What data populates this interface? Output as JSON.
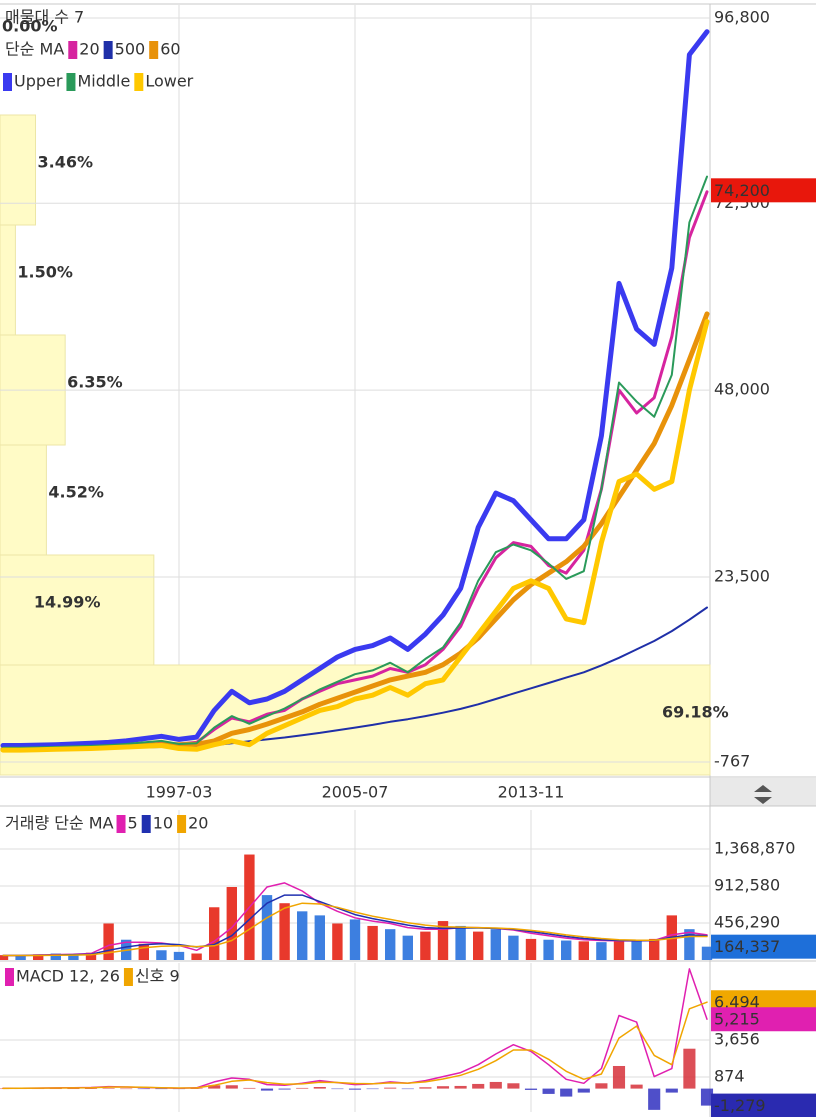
{
  "chart_data": [
    {
      "type": "line",
      "title": "매물대 수 7",
      "ma_label": "단순 MA",
      "categories": [
        null,
        null,
        null,
        null,
        null,
        null,
        null,
        null,
        null,
        null,
        "1997-03",
        null,
        null,
        null,
        null,
        null,
        null,
        null,
        null,
        null,
        "2005-07",
        null,
        null,
        null,
        null,
        null,
        null,
        null,
        null,
        null,
        "2013-11",
        null,
        null,
        null,
        null,
        null,
        null,
        null,
        null,
        null,
        null
      ],
      "series": [
        {
          "name": "20",
          "color": "#d6249f",
          "width": 3,
          "values": [
            1000,
            1000,
            1050,
            1100,
            1150,
            1200,
            1300,
            1400,
            1500,
            1700,
            1600,
            1800,
            3500,
            5000,
            4500,
            5500,
            6000,
            7500,
            8500,
            9500,
            10000,
            10500,
            11500,
            11000,
            12000,
            14000,
            17000,
            22000,
            26000,
            28000,
            27500,
            25000,
            24000,
            27000,
            35000,
            48000,
            45000,
            47000,
            55000,
            68000,
            74000
          ]
        },
        {
          "name": "500",
          "color": "#1f2fa8",
          "width": 2,
          "values": [
            900,
            900,
            920,
            950,
            980,
            1000,
            1050,
            1100,
            1150,
            1200,
            1250,
            1300,
            1450,
            1700,
            1950,
            2200,
            2450,
            2750,
            3050,
            3400,
            3750,
            4100,
            4500,
            4850,
            5250,
            5700,
            6200,
            6800,
            7500,
            8200,
            8900,
            9600,
            10300,
            11000,
            11900,
            12900,
            14000,
            15100,
            16400,
            17900,
            19500
          ]
        },
        {
          "name": "60",
          "color": "#e8920a",
          "width": 5,
          "values": [
            900,
            950,
            1000,
            1050,
            1100,
            1150,
            1200,
            1300,
            1400,
            1500,
            1500,
            1550,
            2000,
            3000,
            3500,
            4200,
            5000,
            5800,
            6800,
            7600,
            8400,
            9200,
            10000,
            10500,
            11000,
            12000,
            13500,
            15500,
            18000,
            20500,
            22500,
            24000,
            25500,
            27500,
            30500,
            34000,
            37500,
            41000,
            46000,
            52000,
            58000
          ]
        },
        {
          "name": "Upper",
          "color": "#3a3af0",
          "width": 5,
          "values": [
            1400,
            1400,
            1450,
            1500,
            1600,
            1700,
            1800,
            2000,
            2300,
            2600,
            2200,
            2500,
            6000,
            8500,
            7000,
            7500,
            8500,
            10000,
            11500,
            13000,
            14000,
            14500,
            15500,
            14000,
            16000,
            18500,
            22000,
            30000,
            34500,
            33500,
            31000,
            28500,
            28500,
            31000,
            42000,
            62000,
            56000,
            54000,
            64000,
            92000,
            95000
          ]
        },
        {
          "name": "Middle",
          "color": "#2a9a5a",
          "width": 2,
          "values": [
            1100,
            1100,
            1150,
            1200,
            1275,
            1350,
            1450,
            1600,
            1800,
            2000,
            1600,
            1700,
            3750,
            5250,
            4250,
            5250,
            6250,
            7500,
            8750,
            9750,
            10750,
            11250,
            12250,
            11000,
            12750,
            14250,
            17500,
            23000,
            26750,
            27750,
            27000,
            25250,
            23250,
            24250,
            35000,
            49000,
            46500,
            44500,
            50000,
            70000,
            76000
          ]
        },
        {
          "name": "Lower",
          "color": "#ffc800",
          "width": 5,
          "values": [
            800,
            800,
            850,
            900,
            950,
            1000,
            1100,
            1200,
            1300,
            1400,
            1000,
            900,
            1500,
            2000,
            1500,
            3000,
            4000,
            5000,
            6000,
            6500,
            7500,
            8000,
            9000,
            8000,
            9500,
            10000,
            13000,
            16000,
            19000,
            22000,
            23000,
            22000,
            18000,
            17500,
            28000,
            36000,
            37000,
            35000,
            36000,
            48000,
            57000
          ]
        }
      ],
      "volume_profile": {
        "values": [
          0.0,
          3.46,
          1.5,
          6.35,
          4.52,
          14.99,
          69.18
        ],
        "value_labels": [
          "0.00%",
          "3.46%",
          "1.50%",
          "6.35%",
          "4.52%",
          "14.99%",
          "69.18%"
        ]
      },
      "ylim": [
        -2470,
        98500
      ],
      "yticks": [
        -767,
        {
          "value": 23500,
          "label": "23,500"
        },
        {
          "value": 48000,
          "label": "48,000"
        },
        {
          "value": 72500,
          "label": "72,500"
        },
        {
          "value": 96800,
          "label": "96,800"
        }
      ],
      "last": [
        {
          "value": 74200,
          "label": "74,200",
          "color": "#e8170c"
        }
      ],
      "grid": true
    },
    {
      "type": "bar",
      "title": "거래량 단순 MA",
      "values": [
        60000,
        50000,
        70000,
        80000,
        60000,
        90000,
        450000,
        250000,
        200000,
        120000,
        100000,
        80000,
        650000,
        900000,
        1300000,
        800000,
        700000,
        600000,
        550000,
        450000,
        500000,
        420000,
        380000,
        300000,
        350000,
        480000,
        420000,
        350000,
        380000,
        300000,
        260000,
        250000,
        240000,
        230000,
        220000,
        240000,
        230000,
        260000,
        550000,
        380000,
        164337
      ],
      "colors": [
        "#e8392c",
        "#3d7fe0",
        "#e8392c",
        "#3d7fe0",
        "#3d7fe0",
        "#e8392c",
        "#e8392c",
        "#3d7fe0",
        "#e8392c",
        "#3d7fe0",
        "#3d7fe0",
        "#e8392c",
        "#e8392c",
        "#e8392c",
        "#e8392c",
        "#3d7fe0",
        "#e8392c",
        "#3d7fe0",
        "#3d7fe0",
        "#e8392c",
        "#3d7fe0",
        "#e8392c",
        "#3d7fe0",
        "#3d7fe0",
        "#e8392c",
        "#e8392c",
        "#3d7fe0",
        "#e8392c",
        "#3d7fe0",
        "#3d7fe0",
        "#e8392c",
        "#3d7fe0",
        "#3d7fe0",
        "#e8392c",
        "#3d7fe0",
        "#e8392c",
        "#3d7fe0",
        "#e8392c",
        "#e8392c",
        "#3d7fe0",
        "#3d7fe0"
      ],
      "series": [
        {
          "name": "5",
          "color": "#e020b0",
          "width": 1.5,
          "values": [
            55000,
            55000,
            62000,
            66000,
            70000,
            80000,
            180000,
            220000,
            220000,
            210000,
            180000,
            120000,
            230000,
            400000,
            650000,
            900000,
            950000,
            850000,
            700000,
            600000,
            520000,
            480000,
            450000,
            400000,
            380000,
            380000,
            400000,
            400000,
            390000,
            370000,
            330000,
            300000,
            270000,
            250000,
            240000,
            235000,
            235000,
            240000,
            310000,
            340000,
            310000
          ]
        },
        {
          "name": "10",
          "color": "#2030b0",
          "width": 1.5,
          "values": [
            55000,
            55000,
            58000,
            62000,
            66000,
            72000,
            120000,
            160000,
            190000,
            200000,
            190000,
            160000,
            190000,
            300000,
            500000,
            700000,
            800000,
            800000,
            720000,
            640000,
            560000,
            510000,
            470000,
            430000,
            400000,
            390000,
            395000,
            395000,
            390000,
            380000,
            350000,
            320000,
            290000,
            265000,
            250000,
            240000,
            238000,
            240000,
            280000,
            310000,
            300000
          ]
        },
        {
          "name": "20",
          "color": "#f0a500",
          "width": 1.5,
          "values": [
            55000,
            55000,
            56000,
            58000,
            61000,
            65000,
            90000,
            120000,
            150000,
            170000,
            175000,
            165000,
            175000,
            240000,
            380000,
            520000,
            640000,
            700000,
            690000,
            650000,
            590000,
            540000,
            500000,
            460000,
            430000,
            410000,
            405000,
            400000,
            395000,
            385000,
            365000,
            340000,
            310000,
            285000,
            265000,
            250000,
            244000,
            243000,
            265000,
            290000,
            290000
          ]
        }
      ],
      "ylim": [
        0,
        1849000
      ],
      "yticks": [
        {
          "value": 456290,
          "label": "456,290"
        },
        {
          "value": 912580,
          "label": "912,580"
        },
        {
          "value": 1368870,
          "label": "1,368,870"
        }
      ],
      "last": [
        {
          "value": 164337,
          "label": "164,337",
          "color": "#1e6fd9"
        }
      ],
      "grid": true
    },
    {
      "type": "line",
      "series": [
        {
          "name": "MACD 12, 26",
          "color": "#e020b0",
          "width": 1.5,
          "values": [
            20,
            30,
            40,
            50,
            60,
            80,
            150,
            120,
            80,
            50,
            30,
            60,
            500,
            800,
            700,
            300,
            250,
            400,
            600,
            450,
            300,
            350,
            500,
            400,
            600,
            900,
            1200,
            1800,
            2600,
            3300,
            2800,
            1800,
            700,
            400,
            1500,
            5500,
            5000,
            900,
            1500,
            9000,
            5215
          ]
        },
        {
          "name": "신호 9",
          "color": "#f0a500",
          "width": 1.5,
          "values": [
            15,
            25,
            35,
            45,
            55,
            70,
            110,
            120,
            100,
            70,
            45,
            50,
            250,
            550,
            650,
            450,
            320,
            350,
            480,
            460,
            380,
            360,
            430,
            410,
            500,
            720,
            1000,
            1450,
            2100,
            2900,
            2900,
            2200,
            1300,
            700,
            1100,
            3800,
            4700,
            2500,
            1800,
            6000,
            6494
          ]
        }
      ],
      "histogram": [
        5,
        5,
        5,
        5,
        5,
        10,
        40,
        0,
        -20,
        -20,
        -15,
        10,
        250,
        250,
        50,
        -150,
        -70,
        50,
        120,
        -10,
        -80,
        -10,
        70,
        -10,
        100,
        180,
        200,
        350,
        500,
        400,
        -100,
        -400,
        -600,
        -300,
        400,
        1700,
        300,
        -1600,
        -300,
        3000,
        -1279
      ],
      "ylim": [
        -1760,
        9445
      ],
      "yticks": [
        874,
        {
          "value": 3656,
          "label": "3,656"
        }
      ],
      "last": [
        {
          "value": 6494,
          "label": "6,494",
          "color": "#f0a800"
        },
        {
          "value": 5215,
          "label": "5,215",
          "color": "#e020b0"
        },
        {
          "value": -1279,
          "label": "-1,279",
          "color": "#2a2ab0"
        }
      ],
      "grid": true
    }
  ]
}
